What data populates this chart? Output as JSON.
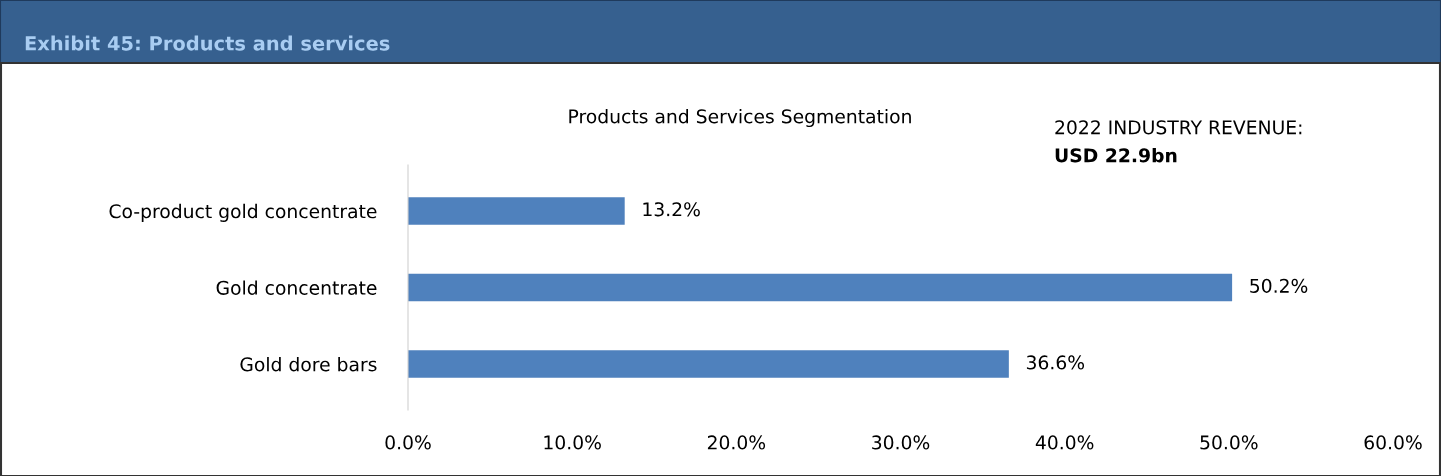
{
  "chart_data": {
    "type": "bar",
    "orientation": "horizontal",
    "title": "Exhibit 45: Products and services",
    "subtitle": "Products and Services Segmentation",
    "annotations": [
      "2022 INDUSTRY REVENUE:",
      "USD 22.9bn"
    ],
    "categories": [
      "Co-product gold concentrate",
      "Gold concentrate",
      "Gold dore bars"
    ],
    "values": [
      13.2,
      50.2,
      36.6
    ],
    "color": "#4f81bd",
    "value_labels": [
      "13.2%",
      "50.2%",
      "36.6%"
    ],
    "xlim": [
      0,
      60
    ],
    "xticks": [
      {
        "value": 0,
        "label": "0.0%"
      },
      {
        "value": 10,
        "label": "10.0%"
      },
      {
        "value": 20,
        "label": "20.0%"
      },
      {
        "value": 30,
        "label": "30.0%"
      },
      {
        "value": 40,
        "label": "40.0%"
      },
      {
        "value": 50,
        "label": "50.0%"
      },
      {
        "value": 60,
        "label": "60.0%"
      }
    ],
    "grid": false,
    "legend": false
  }
}
